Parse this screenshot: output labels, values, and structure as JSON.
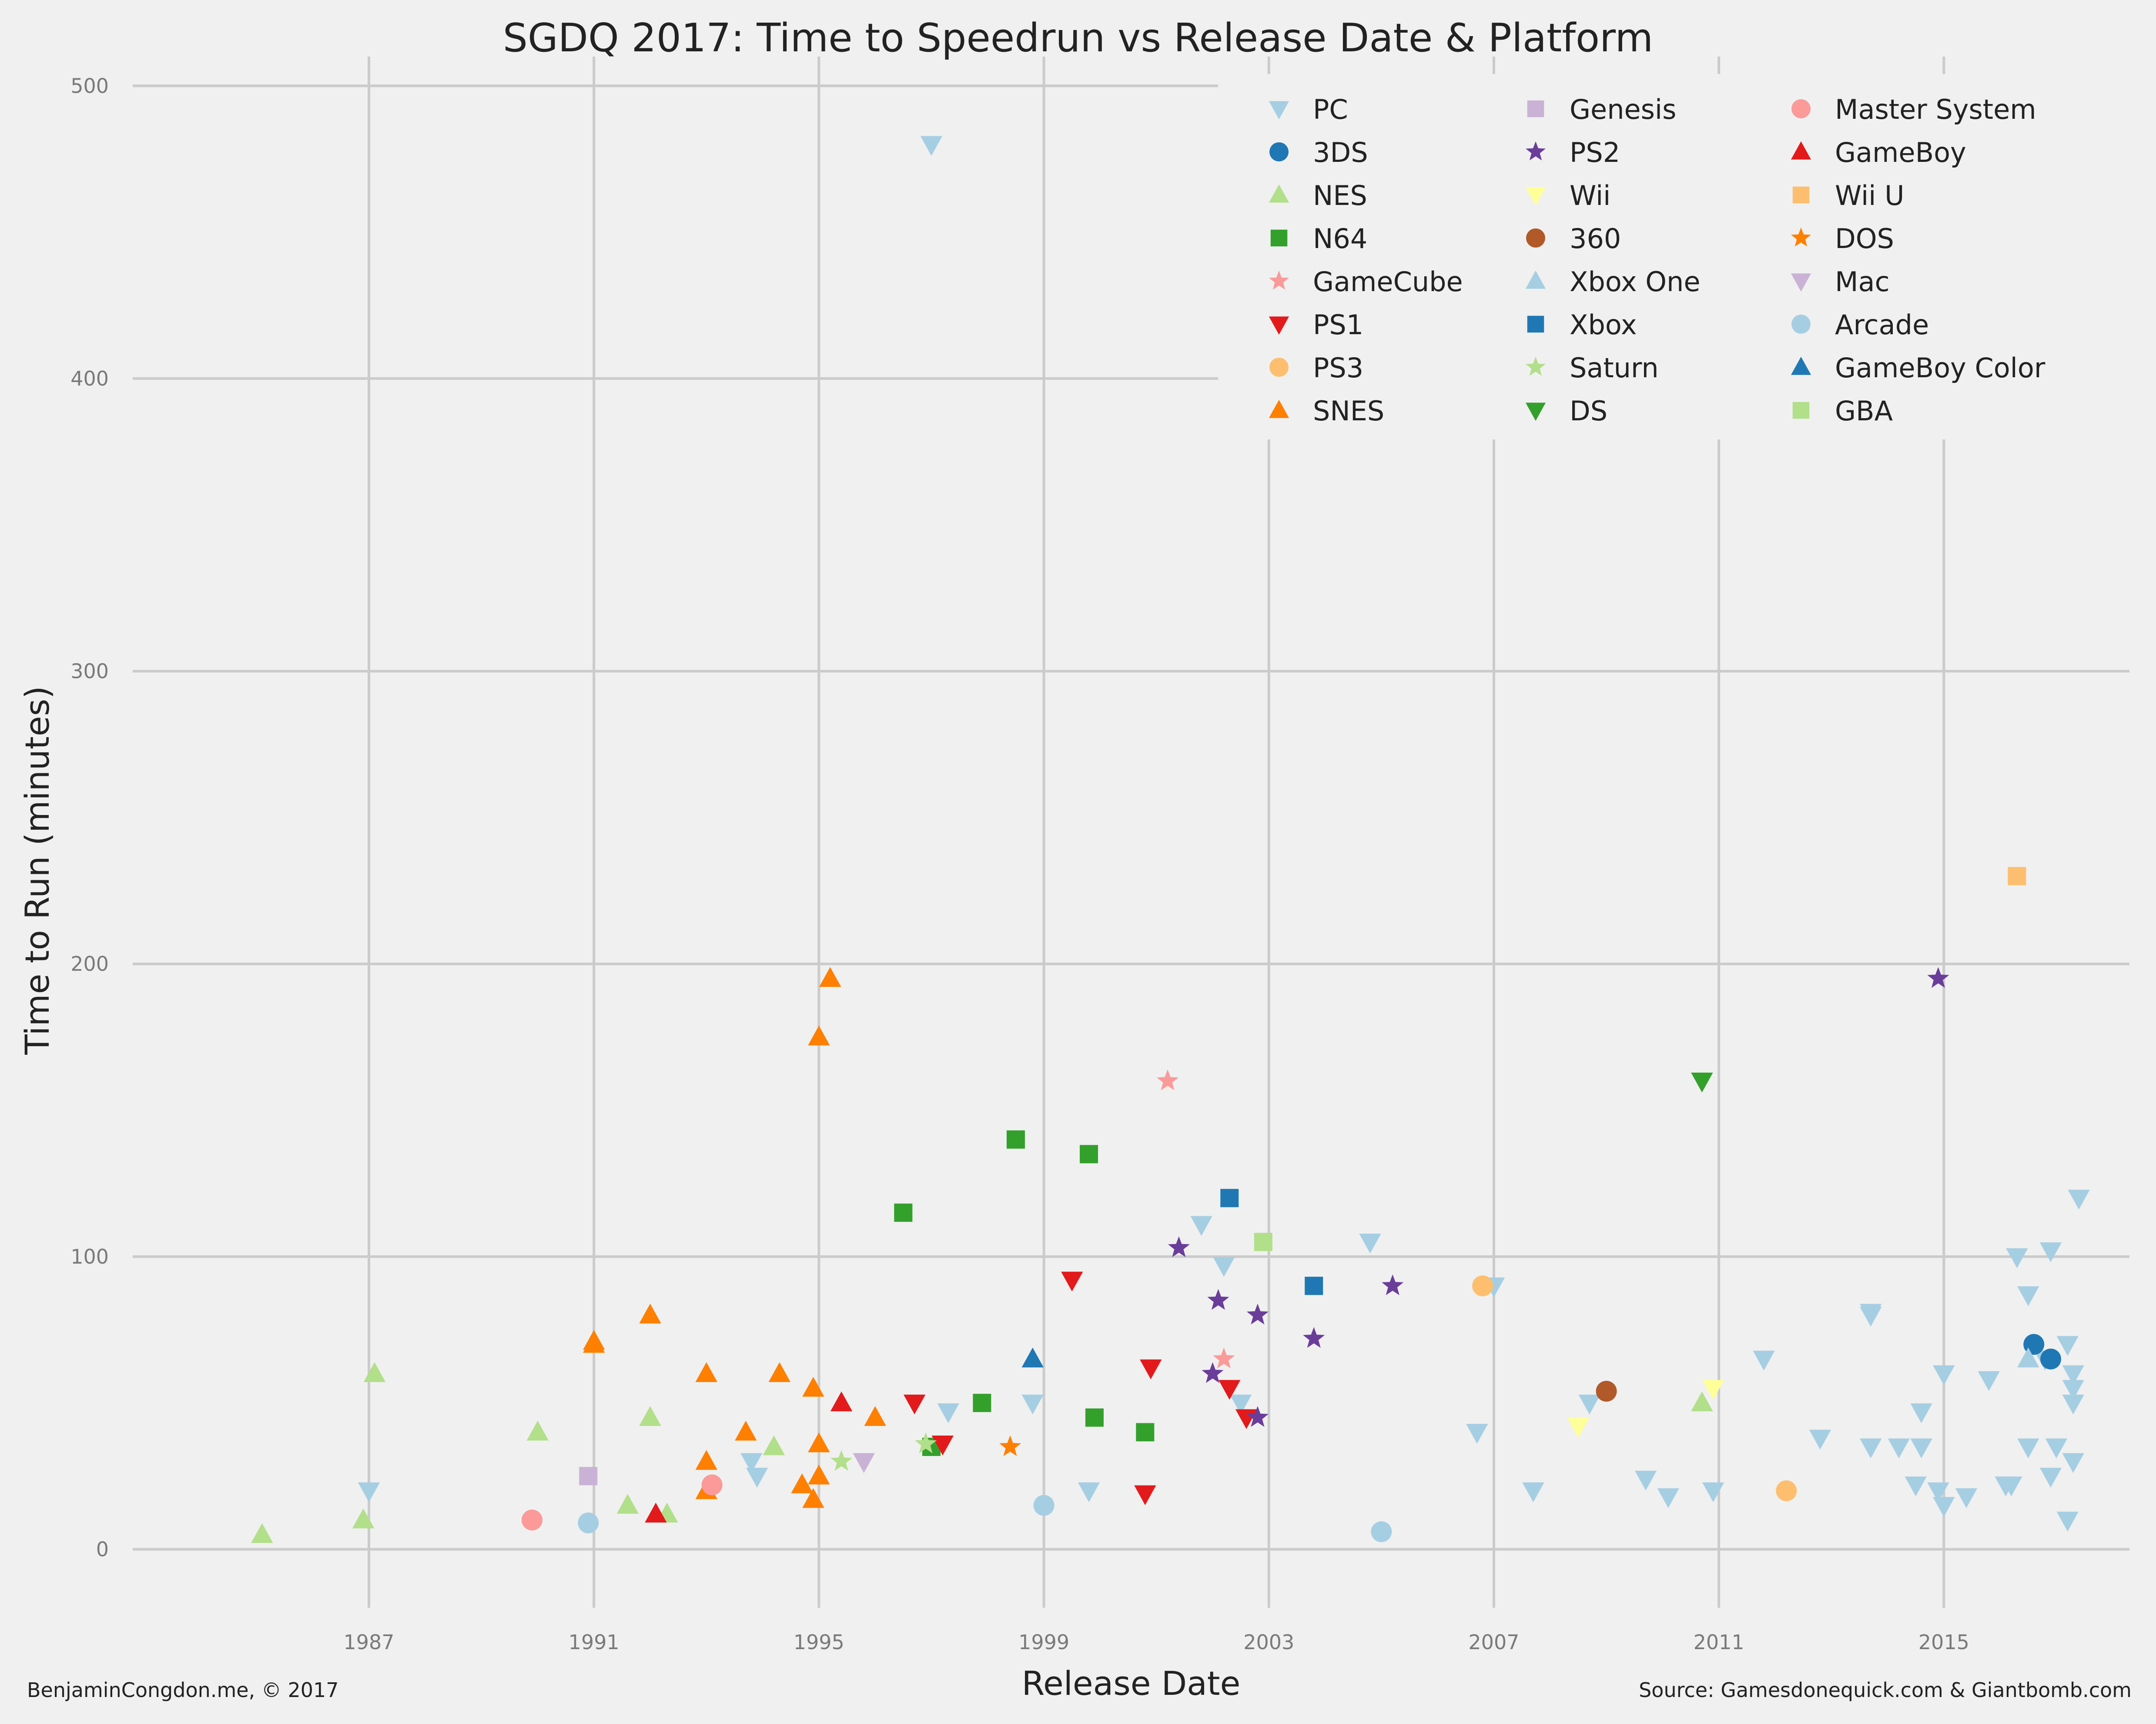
{
  "chart_data": {
    "type": "scatter",
    "title": "SGDQ 2017: Time to Speedrun vs Release Date & Platform",
    "xlabel": "Release Date",
    "ylabel": "Time to Run (minutes)",
    "x_unit": "year",
    "xlim": [
      1982.8,
      2018.3
    ],
    "ylim": [
      -20,
      510
    ],
    "x_ticks": [
      "1987",
      "1991",
      "1995",
      "1999",
      "2003",
      "2007",
      "2011",
      "2015"
    ],
    "y_ticks": [
      "0",
      "100",
      "200",
      "300",
      "400",
      "500"
    ],
    "grid": true,
    "legend_placement": "top-right",
    "footer_left": "BenjaminCongdon.me, © 2017",
    "footer_right": "Source: Gamesdonequick.com & Giantbomb.com",
    "series": [
      {
        "name": "PC",
        "marker": "triangle-down",
        "color": "#a6cee3",
        "points": [
          [
            1987.0,
            20
          ],
          [
            1993.8,
            30
          ],
          [
            1993.9,
            25
          ],
          [
            1997.0,
            480
          ],
          [
            1997.3,
            47
          ],
          [
            1998.8,
            50
          ],
          [
            1999.8,
            20
          ],
          [
            2001.8,
            111
          ],
          [
            2002.2,
            97
          ],
          [
            2002.5,
            50
          ],
          [
            2004.8,
            105
          ],
          [
            2006.7,
            40
          ],
          [
            2007.0,
            90
          ],
          [
            2007.7,
            20
          ],
          [
            2008.7,
            50
          ],
          [
            2009.7,
            24
          ],
          [
            2010.1,
            18
          ],
          [
            2010.9,
            20
          ],
          [
            2011.8,
            65
          ],
          [
            2012.8,
            38
          ],
          [
            2013.7,
            81
          ],
          [
            2013.7,
            80
          ],
          [
            2013.7,
            35
          ],
          [
            2014.2,
            35
          ],
          [
            2014.6,
            35
          ],
          [
            2014.6,
            47
          ],
          [
            2014.5,
            22
          ],
          [
            2014.9,
            20
          ],
          [
            2015.0,
            60
          ],
          [
            2015.0,
            15
          ],
          [
            2015.4,
            18
          ],
          [
            2015.8,
            58
          ],
          [
            2016.1,
            22
          ],
          [
            2016.2,
            22
          ],
          [
            2016.3,
            100
          ],
          [
            2016.5,
            87
          ],
          [
            2016.5,
            35
          ],
          [
            2016.8,
            65
          ],
          [
            2016.9,
            102
          ],
          [
            2016.9,
            25
          ],
          [
            2017.0,
            35
          ],
          [
            2017.2,
            70
          ],
          [
            2017.2,
            10
          ],
          [
            2017.3,
            60
          ],
          [
            2017.3,
            55
          ],
          [
            2017.3,
            50
          ],
          [
            2017.3,
            30
          ],
          [
            2017.4,
            120
          ]
        ]
      },
      {
        "name": "3DS",
        "marker": "circle",
        "color": "#1f78b4",
        "points": [
          [
            2016.6,
            70
          ],
          [
            2016.9,
            65
          ]
        ]
      },
      {
        "name": "NES",
        "marker": "triangle-up",
        "color": "#b2df8a",
        "points": [
          [
            1985.1,
            5
          ],
          [
            1986.9,
            10
          ],
          [
            1987.1,
            60
          ],
          [
            1990.0,
            40
          ],
          [
            1991.6,
            15
          ],
          [
            1992.0,
            45
          ],
          [
            1992.3,
            12
          ],
          [
            1994.2,
            35
          ],
          [
            2010.7,
            50
          ],
          [
            2016.5,
            65
          ]
        ]
      },
      {
        "name": "N64",
        "marker": "square",
        "color": "#33a02c",
        "points": [
          [
            1996.5,
            115
          ],
          [
            1997.0,
            35
          ],
          [
            1997.9,
            50
          ],
          [
            1998.5,
            140
          ],
          [
            1999.8,
            135
          ],
          [
            1999.9,
            45
          ],
          [
            2000.8,
            40
          ]
        ]
      },
      {
        "name": "GameCube",
        "marker": "star",
        "color": "#fb9a99",
        "points": [
          [
            2001.2,
            160
          ],
          [
            2002.2,
            65
          ]
        ]
      },
      {
        "name": "PS1",
        "marker": "triangle-down",
        "color": "#e31a1c",
        "points": [
          [
            1996.7,
            50
          ],
          [
            1997.2,
            36
          ],
          [
            1999.5,
            92
          ],
          [
            2000.8,
            19
          ],
          [
            2000.9,
            62
          ],
          [
            2002.3,
            55
          ],
          [
            2002.6,
            45
          ]
        ]
      },
      {
        "name": "PS3",
        "marker": "circle",
        "color": "#fdbf6f",
        "points": [
          [
            2006.8,
            90
          ],
          [
            2012.2,
            20
          ]
        ]
      },
      {
        "name": "SNES",
        "marker": "triangle-up",
        "color": "#ff7f00",
        "points": [
          [
            1991.0,
            70
          ],
          [
            1991.0,
            71
          ],
          [
            1992.0,
            80
          ],
          [
            1993.0,
            60
          ],
          [
            1993.0,
            30
          ],
          [
            1993.0,
            20
          ],
          [
            1993.7,
            40
          ],
          [
            1994.3,
            60
          ],
          [
            1994.7,
            22
          ],
          [
            1994.9,
            55
          ],
          [
            1994.9,
            17
          ],
          [
            1995.0,
            25
          ],
          [
            1995.0,
            36
          ],
          [
            1995.0,
            175
          ],
          [
            1995.2,
            195
          ],
          [
            1996.0,
            45
          ]
        ]
      },
      {
        "name": "Genesis",
        "marker": "square",
        "color": "#cab2d6",
        "points": [
          [
            1990.9,
            25
          ]
        ]
      },
      {
        "name": "PS2",
        "marker": "star",
        "color": "#6a3d9a",
        "points": [
          [
            2001.4,
            103
          ],
          [
            2002.0,
            60
          ],
          [
            2002.1,
            85
          ],
          [
            2002.8,
            45
          ],
          [
            2002.8,
            80
          ],
          [
            2003.8,
            72
          ],
          [
            2005.2,
            90
          ],
          [
            2014.9,
            195
          ]
        ]
      },
      {
        "name": "Wii",
        "marker": "triangle-down",
        "color": "#ffff99",
        "points": [
          [
            2008.5,
            42
          ],
          [
            2010.9,
            55
          ]
        ]
      },
      {
        "name": "360",
        "marker": "circle",
        "color": "#b15928",
        "points": [
          [
            2009.0,
            54
          ]
        ]
      },
      {
        "name": "Xbox One",
        "marker": "triangle-up",
        "color": "#a6cee3",
        "points": [
          [
            2016.5,
            65
          ]
        ]
      },
      {
        "name": "Xbox",
        "marker": "square",
        "color": "#1f78b4",
        "points": [
          [
            2002.3,
            120
          ],
          [
            2003.8,
            90
          ]
        ]
      },
      {
        "name": "Saturn",
        "marker": "star",
        "color": "#b2df8a",
        "points": [
          [
            1995.4,
            30
          ],
          [
            1996.9,
            36
          ]
        ]
      },
      {
        "name": "DS",
        "marker": "triangle-down",
        "color": "#33a02c",
        "points": [
          [
            2010.7,
            160
          ]
        ]
      },
      {
        "name": "Master System",
        "marker": "circle",
        "color": "#fb9a99",
        "points": [
          [
            1989.9,
            10
          ],
          [
            1993.1,
            22
          ]
        ]
      },
      {
        "name": "GameBoy",
        "marker": "triangle-up",
        "color": "#e31a1c",
        "points": [
          [
            1992.1,
            12
          ],
          [
            1995.4,
            50
          ]
        ]
      },
      {
        "name": "Wii U",
        "marker": "square",
        "color": "#fdbf6f",
        "points": [
          [
            2016.3,
            230
          ]
        ]
      },
      {
        "name": "DOS",
        "marker": "star",
        "color": "#ff7f00",
        "points": [
          [
            1998.4,
            35
          ]
        ]
      },
      {
        "name": "Mac",
        "marker": "triangle-down",
        "color": "#cab2d6",
        "points": [
          [
            1995.8,
            30
          ]
        ]
      },
      {
        "name": "Arcade",
        "marker": "circle",
        "color": "#a6cee3",
        "points": [
          [
            1990.9,
            9
          ],
          [
            1999.0,
            15
          ],
          [
            2005.0,
            6
          ]
        ]
      },
      {
        "name": "GameBoy Color",
        "marker": "triangle-up",
        "color": "#1f78b4",
        "points": [
          [
            1998.8,
            65
          ]
        ]
      },
      {
        "name": "GBA",
        "marker": "square",
        "color": "#b2df8a",
        "points": [
          [
            2002.9,
            105
          ]
        ]
      }
    ]
  }
}
